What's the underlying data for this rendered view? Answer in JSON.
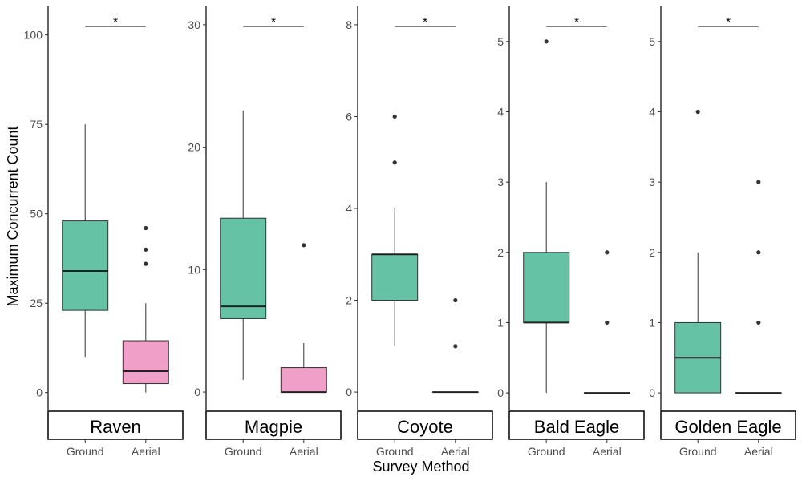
{
  "chart_data": {
    "type": "boxplot",
    "ylabel": "Maximum Concurrent Count",
    "xlabel": "Survey Method",
    "categories": [
      "Ground",
      "Aerial"
    ],
    "colors": {
      "Ground": "#66c2a5",
      "Aerial": "#f0a0c8"
    },
    "panels": [
      {
        "title": "Raven",
        "ylim": [
          -5,
          108
        ],
        "yticks": [
          0,
          25,
          50,
          75,
          100
        ],
        "significance": "*",
        "boxes": [
          {
            "group": "Ground",
            "whisker_low": 10,
            "q1": 23,
            "median": 34,
            "q3": 48,
            "whisker_high": 75,
            "outliers": []
          },
          {
            "group": "Aerial",
            "whisker_low": 0,
            "q1": 2.5,
            "median": 6,
            "q3": 14.5,
            "whisker_high": 25,
            "outliers": [
              36,
              40,
              46
            ]
          }
        ]
      },
      {
        "title": "Magpie",
        "ylim": [
          -1.5,
          31.5
        ],
        "yticks": [
          0,
          10,
          20,
          30
        ],
        "significance": "*",
        "boxes": [
          {
            "group": "Ground",
            "whisker_low": 1,
            "q1": 6,
            "median": 7,
            "q3": 14.2,
            "whisker_high": 23,
            "outliers": []
          },
          {
            "group": "Aerial",
            "whisker_low": 0,
            "q1": 0,
            "median": 0,
            "q3": 2,
            "whisker_high": 4,
            "outliers": [
              12
            ]
          }
        ]
      },
      {
        "title": "Coyote",
        "ylim": [
          -0.4,
          8.4
        ],
        "yticks": [
          0,
          2,
          4,
          6,
          8
        ],
        "significance": "*",
        "boxes": [
          {
            "group": "Ground",
            "whisker_low": 1,
            "q1": 2,
            "median": 3,
            "q3": 3,
            "whisker_high": 4,
            "outliers": [
              5,
              6
            ]
          },
          {
            "group": "Aerial",
            "whisker_low": 0,
            "q1": 0,
            "median": 0,
            "q3": 0,
            "whisker_high": 0,
            "outliers": [
              1,
              2
            ]
          }
        ]
      },
      {
        "title": "Bald Eagle",
        "ylim": [
          -0.25,
          5.5
        ],
        "yticks": [
          0,
          1,
          2,
          3,
          4,
          5
        ],
        "significance": "*",
        "boxes": [
          {
            "group": "Ground",
            "whisker_low": 0,
            "q1": 1,
            "median": 1,
            "q3": 2,
            "whisker_high": 3,
            "outliers": [
              5
            ]
          },
          {
            "group": "Aerial",
            "whisker_low": 0,
            "q1": 0,
            "median": 0,
            "q3": 0,
            "whisker_high": 0,
            "outliers": [
              1,
              2
            ]
          }
        ]
      },
      {
        "title": "Golden Eagle",
        "ylim": [
          -0.25,
          5.5
        ],
        "yticks": [
          0,
          1,
          2,
          3,
          4,
          5
        ],
        "significance": "*",
        "boxes": [
          {
            "group": "Ground",
            "whisker_low": 0,
            "q1": 0,
            "median": 0.5,
            "q3": 1,
            "whisker_high": 2,
            "outliers": [
              4
            ]
          },
          {
            "group": "Aerial",
            "whisker_low": 0,
            "q1": 0,
            "median": 0,
            "q3": 0,
            "whisker_high": 0,
            "outliers": [
              1,
              2,
              3
            ]
          }
        ]
      }
    ]
  }
}
